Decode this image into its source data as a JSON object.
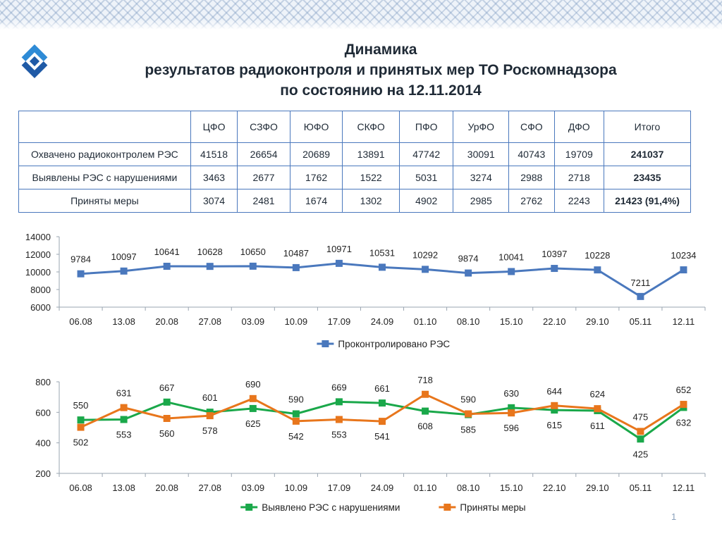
{
  "title": {
    "line1": "Динамика",
    "line2": "результатов радиоконтроля и принятых мер ТО Роскомнадзора",
    "line3": "по состоянию на 12.11.2014"
  },
  "colors": {
    "blue": "#4a78bd",
    "green": "#1aa84a",
    "orange": "#e8761c",
    "border": "#4a78bd"
  },
  "logo": {
    "icon": "roskomnadzor-logo-icon"
  },
  "table": {
    "headers": [
      "",
      "ЦФО",
      "СЗФО",
      "ЮФО",
      "СКФО",
      "ПФО",
      "УрФО",
      "СФО",
      "ДФО",
      "Итого"
    ],
    "rows": [
      {
        "label": "Охвачено радиоконтролем РЭС",
        "values": [
          "41518",
          "26654",
          "20689",
          "13891",
          "47742",
          "30091",
          "40743",
          "19709"
        ],
        "total": "241037"
      },
      {
        "label": "Выявлены РЭС с нарушениями",
        "values": [
          "3463",
          "2677",
          "1762",
          "1522",
          "5031",
          "3274",
          "2988",
          "2718"
        ],
        "total": "23435"
      },
      {
        "label": "Приняты меры",
        "values": [
          "3074",
          "2481",
          "1674",
          "1302",
          "4902",
          "2985",
          "2762",
          "2243"
        ],
        "total": "21423 (91,4%)"
      }
    ]
  },
  "chart_data": [
    {
      "type": "line",
      "categories": [
        "06.08",
        "13.08",
        "20.08",
        "27.08",
        "03.09",
        "10.09",
        "17.09",
        "24.09",
        "01.10",
        "08.10",
        "15.10",
        "22.10",
        "29.10",
        "05.11",
        "12.11"
      ],
      "series": [
        {
          "name": "Проконтролировано РЭС",
          "color": "#4a78bd",
          "values": [
            9784,
            10097,
            10641,
            10628,
            10650,
            10487,
            10971,
            10531,
            10292,
            9874,
            10041,
            10397,
            10228,
            7211,
            10234
          ]
        }
      ],
      "yticks": [
        6000,
        8000,
        10000,
        12000,
        14000
      ],
      "ylim": [
        6000,
        14000
      ],
      "legend": "bottom"
    },
    {
      "type": "line",
      "categories": [
        "06.08",
        "13.08",
        "20.08",
        "27.08",
        "03.09",
        "10.09",
        "17.09",
        "24.09",
        "01.10",
        "08.10",
        "15.10",
        "22.10",
        "29.10",
        "05.11",
        "12.11"
      ],
      "series": [
        {
          "name": "Выявлено РЭС с нарушениями",
          "color": "#1aa84a",
          "values": [
            550,
            553,
            667,
            601,
            625,
            590,
            669,
            661,
            608,
            585,
            630,
            615,
            611,
            425,
            632
          ]
        },
        {
          "name": "Приняты меры",
          "color": "#e8761c",
          "values": [
            502,
            631,
            560,
            578,
            690,
            542,
            553,
            541,
            718,
            590,
            596,
            644,
            624,
            475,
            652
          ]
        }
      ],
      "yticks": [
        200,
        400,
        600,
        800
      ],
      "ylim": [
        200,
        800
      ],
      "legend": "bottom"
    }
  ],
  "page_number": "1"
}
